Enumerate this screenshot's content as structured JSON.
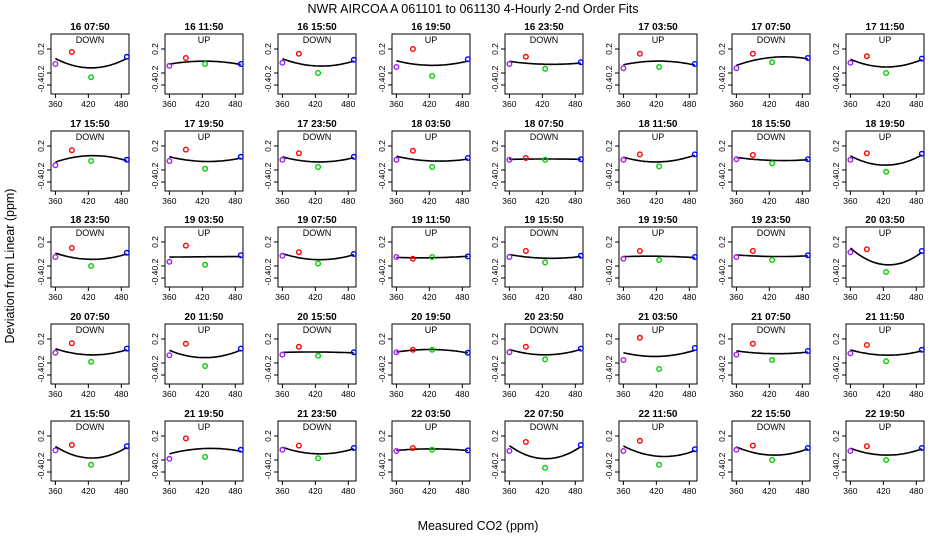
{
  "chart_data": {
    "type": "scatter",
    "title": "NWR   AIRCOA A    061101 to 061130   4-Hourly 2-nd Order Fits",
    "xlabel": "Measured CO2 (ppm)",
    "ylabel": "Deviation from Linear (ppm)",
    "xlim": [
      352,
      494
    ],
    "ylim": [
      -0.55,
      0.45
    ],
    "xticks": [
      "360",
      "420",
      "480"
    ],
    "yticks": [
      "0.2",
      "-0.2",
      "-0.4"
    ],
    "yticks_values": [
      0.2,
      -0.2,
      -0.4
    ],
    "xticks_values": [
      360,
      420,
      480
    ],
    "colors": {
      "ref1": "#a020f0",
      "ref2": "#ff0000",
      "ref3": "#00cc00",
      "ref4": "#0000ff",
      "fit": "#000000"
    },
    "x_positions": [
      360,
      390,
      425,
      490
    ],
    "panels": [
      {
        "label": "16 07:50",
        "dir": "DOWN",
        "ys": [
          -0.05,
          0.15,
          -0.27,
          0.07
        ]
      },
      {
        "label": "16 11:50",
        "dir": "UP",
        "ys": [
          -0.08,
          0.05,
          -0.05,
          -0.05
        ]
      },
      {
        "label": "16 15:50",
        "dir": "DOWN",
        "ys": [
          -0.03,
          0.12,
          -0.2,
          0.02
        ]
      },
      {
        "label": "16 19:50",
        "dir": "UP",
        "ys": [
          -0.1,
          0.2,
          -0.25,
          0.03
        ]
      },
      {
        "label": "16 23:50",
        "dir": "DOWN",
        "ys": [
          -0.05,
          0.07,
          -0.13,
          -0.02
        ]
      },
      {
        "label": "17 03:50",
        "dir": "UP",
        "ys": [
          -0.12,
          0.12,
          -0.1,
          -0.05
        ]
      },
      {
        "label": "17 07:50",
        "dir": "DOWN",
        "ys": [
          -0.12,
          0.12,
          -0.02,
          0.05
        ]
      },
      {
        "label": "17 11:50",
        "dir": "UP",
        "ys": [
          -0.03,
          0.08,
          -0.2,
          0.04
        ]
      },
      {
        "label": "17 15:50",
        "dir": "DOWN",
        "ys": [
          -0.12,
          0.13,
          -0.05,
          -0.03
        ]
      },
      {
        "label": "17 19:50",
        "dir": "UP",
        "ys": [
          -0.05,
          0.14,
          -0.18,
          0.02
        ]
      },
      {
        "label": "17 23:50",
        "dir": "DOWN",
        "ys": [
          -0.03,
          0.08,
          -0.15,
          0.02
        ]
      },
      {
        "label": "18 03:50",
        "dir": "UP",
        "ys": [
          -0.03,
          0.12,
          -0.15,
          0.0
        ]
      },
      {
        "label": "18 07:50",
        "dir": "DOWN",
        "ys": [
          -0.03,
          0.0,
          -0.03,
          -0.02
        ]
      },
      {
        "label": "18 11:50",
        "dir": "UP",
        "ys": [
          -0.03,
          0.06,
          -0.14,
          0.06
        ]
      },
      {
        "label": "18 15:50",
        "dir": "DOWN",
        "ys": [
          -0.02,
          0.05,
          -0.09,
          -0.02
        ]
      },
      {
        "label": "18 19:50",
        "dir": "UP",
        "ys": [
          -0.03,
          0.08,
          -0.23,
          0.07
        ]
      },
      {
        "label": "18 23:50",
        "dir": "DOWN",
        "ys": [
          -0.05,
          0.1,
          -0.2,
          0.02
        ]
      },
      {
        "label": "19 03:50",
        "dir": "UP",
        "ys": [
          -0.13,
          0.14,
          -0.18,
          -0.02
        ]
      },
      {
        "label": "19 07:50",
        "dir": "DOWN",
        "ys": [
          -0.03,
          0.03,
          -0.16,
          0.0
        ]
      },
      {
        "label": "19 11:50",
        "dir": "UP",
        "ys": [
          -0.05,
          -0.08,
          -0.05,
          -0.04
        ]
      },
      {
        "label": "19 15:50",
        "dir": "DOWN",
        "ys": [
          -0.05,
          0.05,
          -0.14,
          -0.03
        ]
      },
      {
        "label": "19 19:50",
        "dir": "UP",
        "ys": [
          -0.08,
          0.05,
          -0.1,
          -0.05
        ]
      },
      {
        "label": "19 23:50",
        "dir": "DOWN",
        "ys": [
          -0.05,
          0.05,
          -0.1,
          -0.02
        ]
      },
      {
        "label": "20 03:50",
        "dir": "UP",
        "ys": [
          0.03,
          0.08,
          -0.3,
          0.05
        ]
      },
      {
        "label": "20 07:50",
        "dir": "DOWN",
        "ys": [
          -0.03,
          0.13,
          -0.18,
          0.04
        ]
      },
      {
        "label": "20 11:50",
        "dir": "UP",
        "ys": [
          -0.07,
          0.12,
          -0.25,
          0.04
        ]
      },
      {
        "label": "20 15:50",
        "dir": "DOWN",
        "ys": [
          -0.06,
          0.07,
          -0.08,
          -0.02
        ]
      },
      {
        "label": "20 19:50",
        "dir": "UP",
        "ys": [
          -0.02,
          0.02,
          0.02,
          -0.03
        ]
      },
      {
        "label": "20 23:50",
        "dir": "DOWN",
        "ys": [
          -0.02,
          0.07,
          -0.14,
          0.04
        ]
      },
      {
        "label": "21 03:50",
        "dir": "UP",
        "ys": [
          -0.15,
          0.22,
          -0.3,
          0.05
        ]
      },
      {
        "label": "21 07:50",
        "dir": "DOWN",
        "ys": [
          -0.06,
          0.12,
          -0.15,
          0.0
        ]
      },
      {
        "label": "21 11:50",
        "dir": "UP",
        "ys": [
          -0.04,
          0.1,
          -0.17,
          0.02
        ]
      },
      {
        "label": "21 15:50",
        "dir": "DOWN",
        "ys": [
          -0.04,
          0.05,
          -0.28,
          0.03
        ]
      },
      {
        "label": "21 19:50",
        "dir": "UP",
        "ys": [
          -0.18,
          0.16,
          -0.15,
          -0.03
        ]
      },
      {
        "label": "21 23:50",
        "dir": "DOWN",
        "ys": [
          -0.03,
          0.04,
          -0.17,
          0.0
        ]
      },
      {
        "label": "22 03:50",
        "dir": "UP",
        "ys": [
          -0.05,
          0.0,
          -0.03,
          -0.04
        ]
      },
      {
        "label": "22 07:50",
        "dir": "DOWN",
        "ys": [
          -0.05,
          0.1,
          -0.33,
          0.05
        ]
      },
      {
        "label": "22 11:50",
        "dir": "UP",
        "ys": [
          -0.05,
          0.12,
          -0.28,
          -0.02
        ]
      },
      {
        "label": "22 15:50",
        "dir": "DOWN",
        "ys": [
          -0.03,
          0.04,
          -0.2,
          0.0
        ]
      },
      {
        "label": "22 19:50",
        "dir": "UP",
        "ys": [
          -0.05,
          0.03,
          -0.2,
          0.0
        ]
      }
    ]
  }
}
